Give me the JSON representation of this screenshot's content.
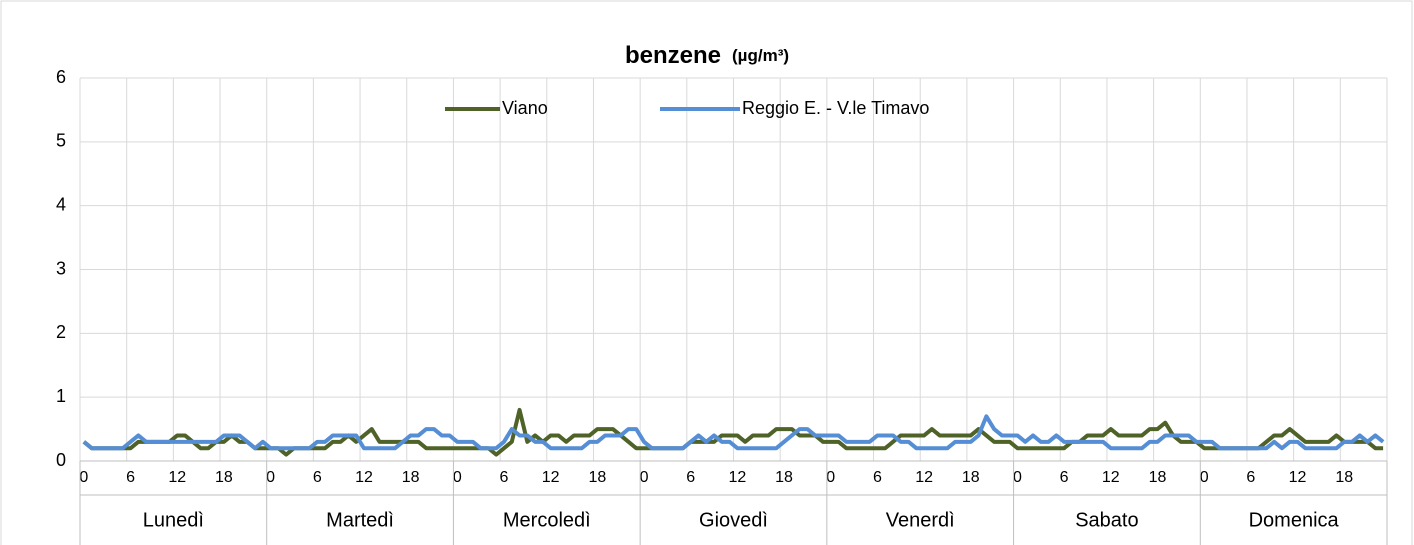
{
  "chart_data": {
    "type": "line",
    "title": "benzene",
    "title_unit": "(µg/m³)",
    "groups": [
      "Lunedì",
      "Martedì",
      "Mercoledì",
      "Giovedì",
      "Venerdì",
      "Sabato",
      "Domenica"
    ],
    "categories": [
      0,
      null,
      null,
      null,
      null,
      null,
      6,
      null,
      null,
      null,
      null,
      null,
      12,
      null,
      null,
      null,
      null,
      null,
      18,
      null,
      null,
      null,
      null,
      null,
      0,
      null,
      null,
      null,
      null,
      null,
      6,
      null,
      null,
      null,
      null,
      null,
      12,
      null,
      null,
      null,
      null,
      null,
      18,
      null,
      null,
      null,
      null,
      null,
      0,
      null,
      null,
      null,
      null,
      null,
      6,
      null,
      null,
      null,
      null,
      null,
      12,
      null,
      null,
      null,
      null,
      null,
      18,
      null,
      null,
      null,
      null,
      null,
      0,
      null,
      null,
      null,
      null,
      null,
      6,
      null,
      null,
      null,
      null,
      null,
      12,
      null,
      null,
      null,
      null,
      null,
      18,
      null,
      null,
      null,
      null,
      null,
      0,
      null,
      null,
      null,
      null,
      null,
      6,
      null,
      null,
      null,
      null,
      null,
      12,
      null,
      null,
      null,
      null,
      null,
      18,
      null,
      null,
      null,
      null,
      null,
      0,
      null,
      null,
      null,
      null,
      null,
      6,
      null,
      null,
      null,
      null,
      null,
      12,
      null,
      null,
      null,
      null,
      null,
      18,
      null,
      null,
      null,
      null,
      null,
      0,
      null,
      null,
      null,
      null,
      null,
      6,
      null,
      null,
      null,
      null,
      null,
      12,
      null,
      null,
      null,
      null,
      null,
      18,
      null,
      null,
      null,
      null,
      null
    ],
    "series": [
      {
        "name": "Viano",
        "color": "#4f6228",
        "values": [
          0.3,
          0.2,
          0.2,
          0.2,
          0.2,
          0.2,
          0.2,
          0.3,
          0.3,
          0.3,
          0.3,
          0.3,
          0.4,
          0.4,
          0.3,
          0.2,
          0.2,
          0.3,
          0.3,
          0.4,
          0.3,
          0.3,
          0.2,
          0.2,
          0.2,
          0.2,
          0.1,
          0.2,
          0.2,
          0.2,
          0.2,
          0.2,
          0.3,
          0.3,
          0.4,
          0.3,
          0.4,
          0.5,
          0.3,
          0.3,
          0.3,
          0.3,
          0.3,
          0.3,
          0.2,
          0.2,
          0.2,
          0.2,
          0.2,
          0.2,
          0.2,
          0.2,
          0.2,
          0.1,
          0.2,
          0.3,
          0.8,
          0.3,
          0.4,
          0.3,
          0.4,
          0.4,
          0.3,
          0.4,
          0.4,
          0.4,
          0.5,
          0.5,
          0.5,
          0.4,
          0.3,
          0.2,
          0.2,
          0.2,
          0.2,
          0.2,
          0.2,
          0.2,
          0.3,
          0.3,
          0.3,
          0.3,
          0.4,
          0.4,
          0.4,
          0.3,
          0.4,
          0.4,
          0.4,
          0.5,
          0.5,
          0.5,
          0.4,
          0.4,
          0.4,
          0.3,
          0.3,
          0.3,
          0.2,
          0.2,
          0.2,
          0.2,
          0.2,
          0.2,
          0.3,
          0.4,
          0.4,
          0.4,
          0.4,
          0.5,
          0.4,
          0.4,
          0.4,
          0.4,
          0.4,
          0.5,
          0.4,
          0.3,
          0.3,
          0.3,
          0.2,
          0.2,
          0.2,
          0.2,
          0.2,
          0.2,
          0.2,
          0.3,
          0.3,
          0.4,
          0.4,
          0.4,
          0.5,
          0.4,
          0.4,
          0.4,
          0.4,
          0.5,
          0.5,
          0.6,
          0.4,
          0.3,
          0.3,
          0.3,
          0.2,
          0.2,
          0.2,
          0.2,
          0.2,
          0.2,
          0.2,
          0.2,
          0.3,
          0.4,
          0.4,
          0.5,
          0.4,
          0.3,
          0.3,
          0.3,
          0.3,
          0.4,
          0.3,
          0.3,
          0.3,
          0.3,
          0.2,
          0.2
        ]
      },
      {
        "name": "Reggio E. - V.le Timavo",
        "color": "#558ed5",
        "values": [
          0.3,
          0.2,
          0.2,
          0.2,
          0.2,
          0.2,
          0.3,
          0.4,
          0.3,
          0.3,
          0.3,
          0.3,
          0.3,
          0.3,
          0.3,
          0.3,
          0.3,
          0.3,
          0.4,
          0.4,
          0.4,
          0.3,
          0.2,
          0.3,
          0.2,
          0.2,
          0.2,
          0.2,
          0.2,
          0.2,
          0.3,
          0.3,
          0.4,
          0.4,
          0.4,
          0.4,
          0.2,
          0.2,
          0.2,
          0.2,
          0.2,
          0.3,
          0.4,
          0.4,
          0.5,
          0.5,
          0.4,
          0.4,
          0.3,
          0.3,
          0.3,
          0.2,
          0.2,
          0.2,
          0.3,
          0.5,
          0.4,
          0.4,
          0.3,
          0.3,
          0.2,
          0.2,
          0.2,
          0.2,
          0.2,
          0.3,
          0.3,
          0.4,
          0.4,
          0.4,
          0.5,
          0.5,
          0.3,
          0.2,
          0.2,
          0.2,
          0.2,
          0.2,
          0.3,
          0.4,
          0.3,
          0.4,
          0.3,
          0.3,
          0.2,
          0.2,
          0.2,
          0.2,
          0.2,
          0.2,
          0.3,
          0.4,
          0.5,
          0.5,
          0.4,
          0.4,
          0.4,
          0.4,
          0.3,
          0.3,
          0.3,
          0.3,
          0.4,
          0.4,
          0.4,
          0.3,
          0.3,
          0.2,
          0.2,
          0.2,
          0.2,
          0.2,
          0.3,
          0.3,
          0.3,
          0.4,
          0.7,
          0.5,
          0.4,
          0.4,
          0.4,
          0.3,
          0.4,
          0.3,
          0.3,
          0.4,
          0.3,
          0.3,
          0.3,
          0.3,
          0.3,
          0.3,
          0.2,
          0.2,
          0.2,
          0.2,
          0.2,
          0.3,
          0.3,
          0.4,
          0.4,
          0.4,
          0.4,
          0.3,
          0.3,
          0.3,
          0.2,
          0.2,
          0.2,
          0.2,
          0.2,
          0.2,
          0.2,
          0.3,
          0.2,
          0.3,
          0.3,
          0.2,
          0.2,
          0.2,
          0.2,
          0.2,
          0.3,
          0.3,
          0.4,
          0.3,
          0.4,
          0.3
        ]
      }
    ],
    "ylim": [
      0,
      6
    ],
    "yticks": [
      0,
      1,
      2,
      3,
      4,
      5,
      6
    ],
    "grid": true,
    "legend": "top"
  }
}
